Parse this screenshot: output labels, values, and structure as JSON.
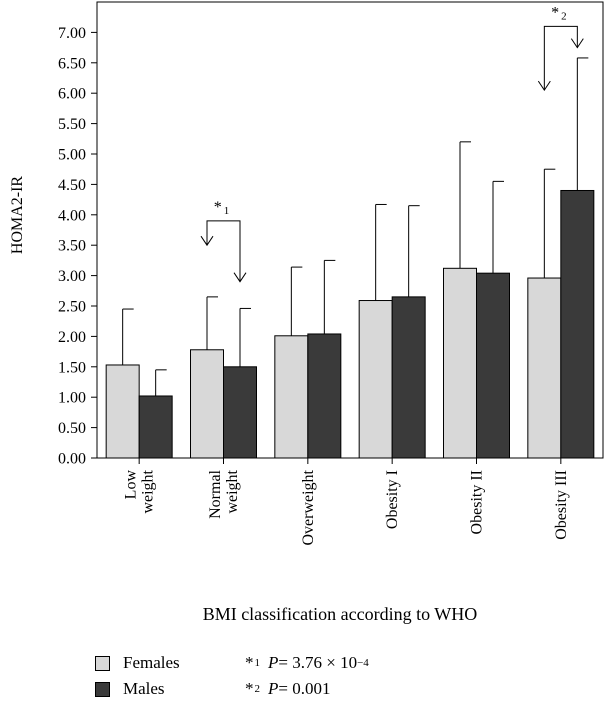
{
  "chart_data": {
    "type": "bar",
    "ylabel": "HOMA2-IR",
    "xlabel": "BMI classification according to WHO",
    "ylim": [
      0,
      7.5
    ],
    "yticks": [
      "0.00",
      "0.50",
      "1.00",
      "1.50",
      "2.00",
      "2.50",
      "3.00",
      "3.50",
      "4.00",
      "4.50",
      "5.00",
      "5.50",
      "6.00",
      "6.50",
      "7.00"
    ],
    "categories": [
      {
        "lines": [
          "Low",
          "weight"
        ]
      },
      {
        "lines": [
          "Normal",
          "weight"
        ]
      },
      {
        "lines": [
          "Overweight"
        ]
      },
      {
        "lines": [
          "Obesity I"
        ]
      },
      {
        "lines": [
          "Obesity II"
        ]
      },
      {
        "lines": [
          "Obesity III"
        ]
      }
    ],
    "series": [
      {
        "name": "Females",
        "color": "#d8d8d8",
        "values": [
          1.53,
          1.78,
          2.01,
          2.59,
          3.12,
          2.96
        ],
        "err_upper": [
          2.45,
          2.65,
          3.14,
          4.17,
          5.2,
          4.75
        ]
      },
      {
        "name": "Males",
        "color": "#3a3a3a",
        "values": [
          1.02,
          1.5,
          2.04,
          2.65,
          3.04,
          4.4
        ],
        "err_upper": [
          1.45,
          2.46,
          3.25,
          4.15,
          4.55,
          6.58
        ]
      }
    ],
    "annotations": [
      {
        "category_index": 1,
        "mark": "*",
        "index_label": "1",
        "left_tip": 3.5,
        "right_tip": 2.9,
        "bracket": 3.9
      },
      {
        "category_index": 5,
        "mark": "*",
        "index_label": "2",
        "left_tip": 6.05,
        "right_tip": 6.75,
        "bracket": 7.1
      }
    ],
    "legend": {
      "placement": "bottom-left",
      "items": [
        {
          "label": "Females",
          "color": "#d8d8d8"
        },
        {
          "label": "Males",
          "color": "#3a3a3a"
        }
      ]
    },
    "significance": [
      {
        "mark": "*",
        "index": "1",
        "p_label": "P",
        "eq": " = 3.76 × 10",
        "exp": "−4"
      },
      {
        "mark": "*",
        "index": "2",
        "p_label": "P",
        "eq": " = 0.001",
        "exp": ""
      }
    ]
  }
}
